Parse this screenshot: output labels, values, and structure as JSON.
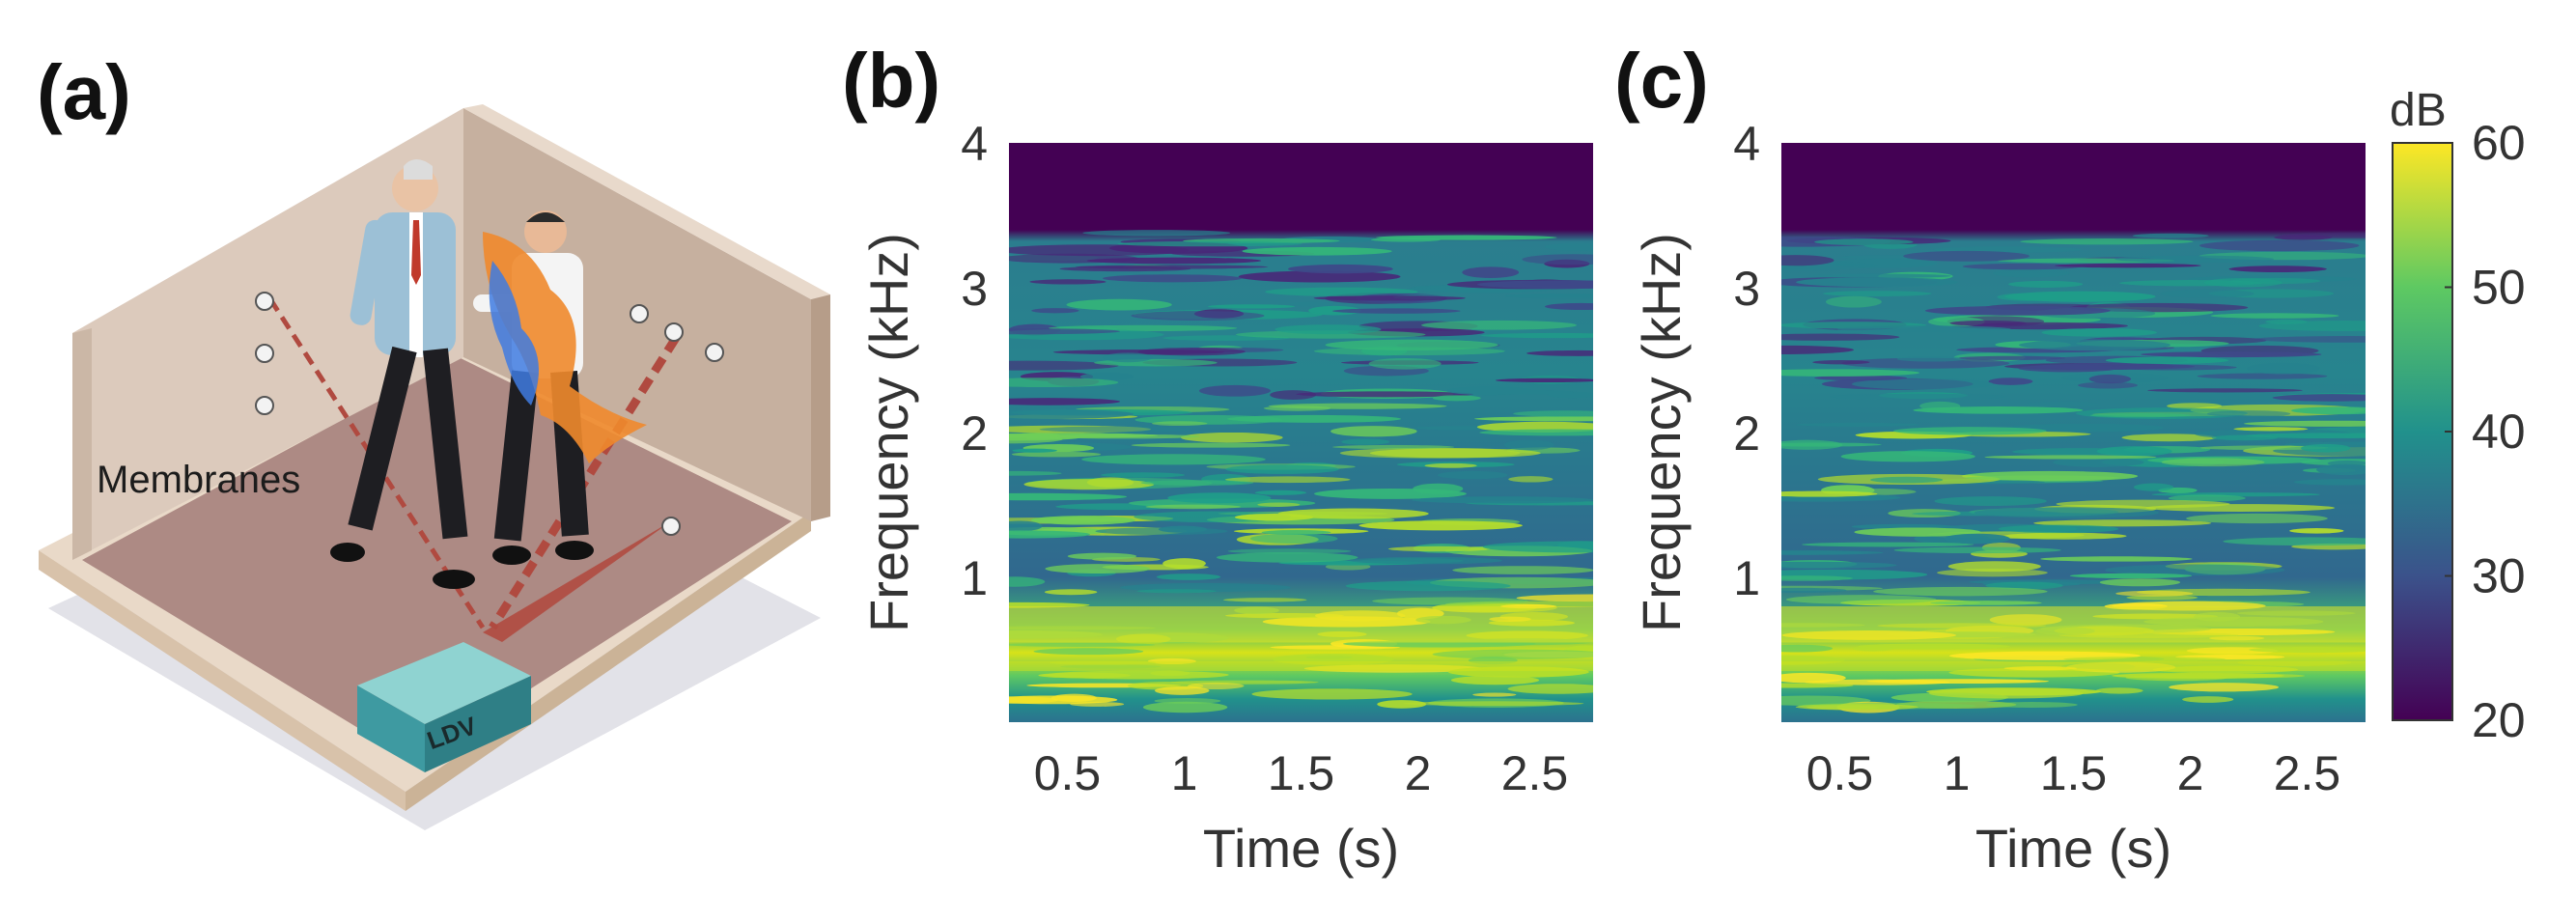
{
  "panels": {
    "a": {
      "label": "(a)",
      "membranes_label": "Membranes",
      "device_label": "LDV"
    },
    "b": {
      "label": "(b)"
    },
    "c": {
      "label": "(c)"
    }
  },
  "colorbar": {
    "title": "dB",
    "ticks": [
      "60",
      "50",
      "40",
      "30",
      "20"
    ],
    "colors": {
      "top": "#fde725",
      "upper": "#5ec962",
      "mid": "#21918c",
      "lower": "#3b528b",
      "bottom": "#440154"
    }
  },
  "chart_data": [
    {
      "type": "heatmap",
      "title": "",
      "xlabel": "Time (s)",
      "ylabel": "Frequency (kHz)",
      "xticks": [
        "0.5",
        "1",
        "1.5",
        "2",
        "2.5"
      ],
      "yticks": [
        "1",
        "2",
        "3",
        "4"
      ],
      "xlim": [
        0.25,
        2.75
      ],
      "ylim": [
        0,
        4
      ],
      "colorbar_range_db": [
        20,
        60
      ],
      "description_note": ""
    },
    {
      "type": "heatmap",
      "title": "",
      "xlabel": "Time (s)",
      "ylabel": "Frequency (kHz)",
      "xticks": [
        "0.5",
        "1",
        "1.5",
        "2",
        "2.5"
      ],
      "yticks": [
        "1",
        "2",
        "3",
        "4"
      ],
      "xlim": [
        0.25,
        2.75
      ],
      "ylim": [
        0,
        4
      ],
      "colorbar_range_db": [
        20,
        60
      ]
    }
  ]
}
